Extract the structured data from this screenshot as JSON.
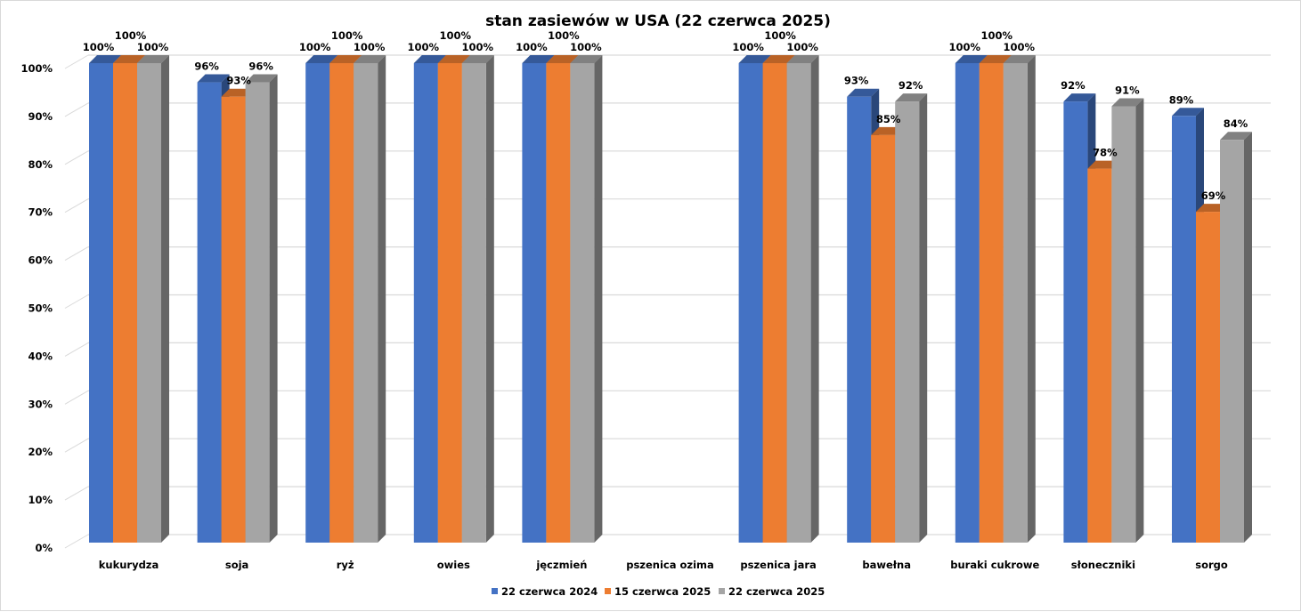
{
  "chart_data": {
    "type": "bar",
    "title": "stan zasiewów w USA (22 czerwca 2025)",
    "xlabel": "",
    "ylabel": "",
    "ylim": [
      0,
      100
    ],
    "yticks": [
      "0%",
      "10%",
      "20%",
      "30%",
      "40%",
      "50%",
      "60%",
      "70%",
      "80%",
      "90%",
      "100%"
    ],
    "grid": true,
    "legend_position": "bottom",
    "categories": [
      "kukurydza",
      "soja",
      "ryż",
      "owies",
      "jęczmień",
      "pszenica ozima",
      "pszenica jara",
      "bawełna",
      "buraki cukrowe",
      "słoneczniki",
      "sorgo"
    ],
    "series": [
      {
        "name": "22 czerwca 2024",
        "color": "#4472C4",
        "values": [
          100,
          96,
          100,
          100,
          100,
          null,
          100,
          93,
          100,
          92,
          89
        ]
      },
      {
        "name": "15 czerwca 2025",
        "color": "#ED7D31",
        "values": [
          100,
          93,
          100,
          100,
          100,
          null,
          100,
          85,
          100,
          78,
          69
        ]
      },
      {
        "name": "22 czerwca 2025",
        "color": "#A5A5A5",
        "values": [
          100,
          96,
          100,
          100,
          100,
          null,
          100,
          92,
          100,
          91,
          84
        ]
      }
    ],
    "data_labels": [
      [
        "100%",
        "96%",
        "100%",
        "100%",
        "100%",
        "",
        "100%",
        "93%",
        "100%",
        "92%",
        "89%"
      ],
      [
        "100%",
        "93%",
        "100%",
        "100%",
        "100%",
        "",
        "100%",
        "85%",
        "100%",
        "78%",
        "69%"
      ],
      [
        "100%",
        "96%",
        "100%",
        "100%",
        "100%",
        "",
        "100%",
        "92%",
        "100%",
        "91%",
        "84%"
      ]
    ]
  }
}
